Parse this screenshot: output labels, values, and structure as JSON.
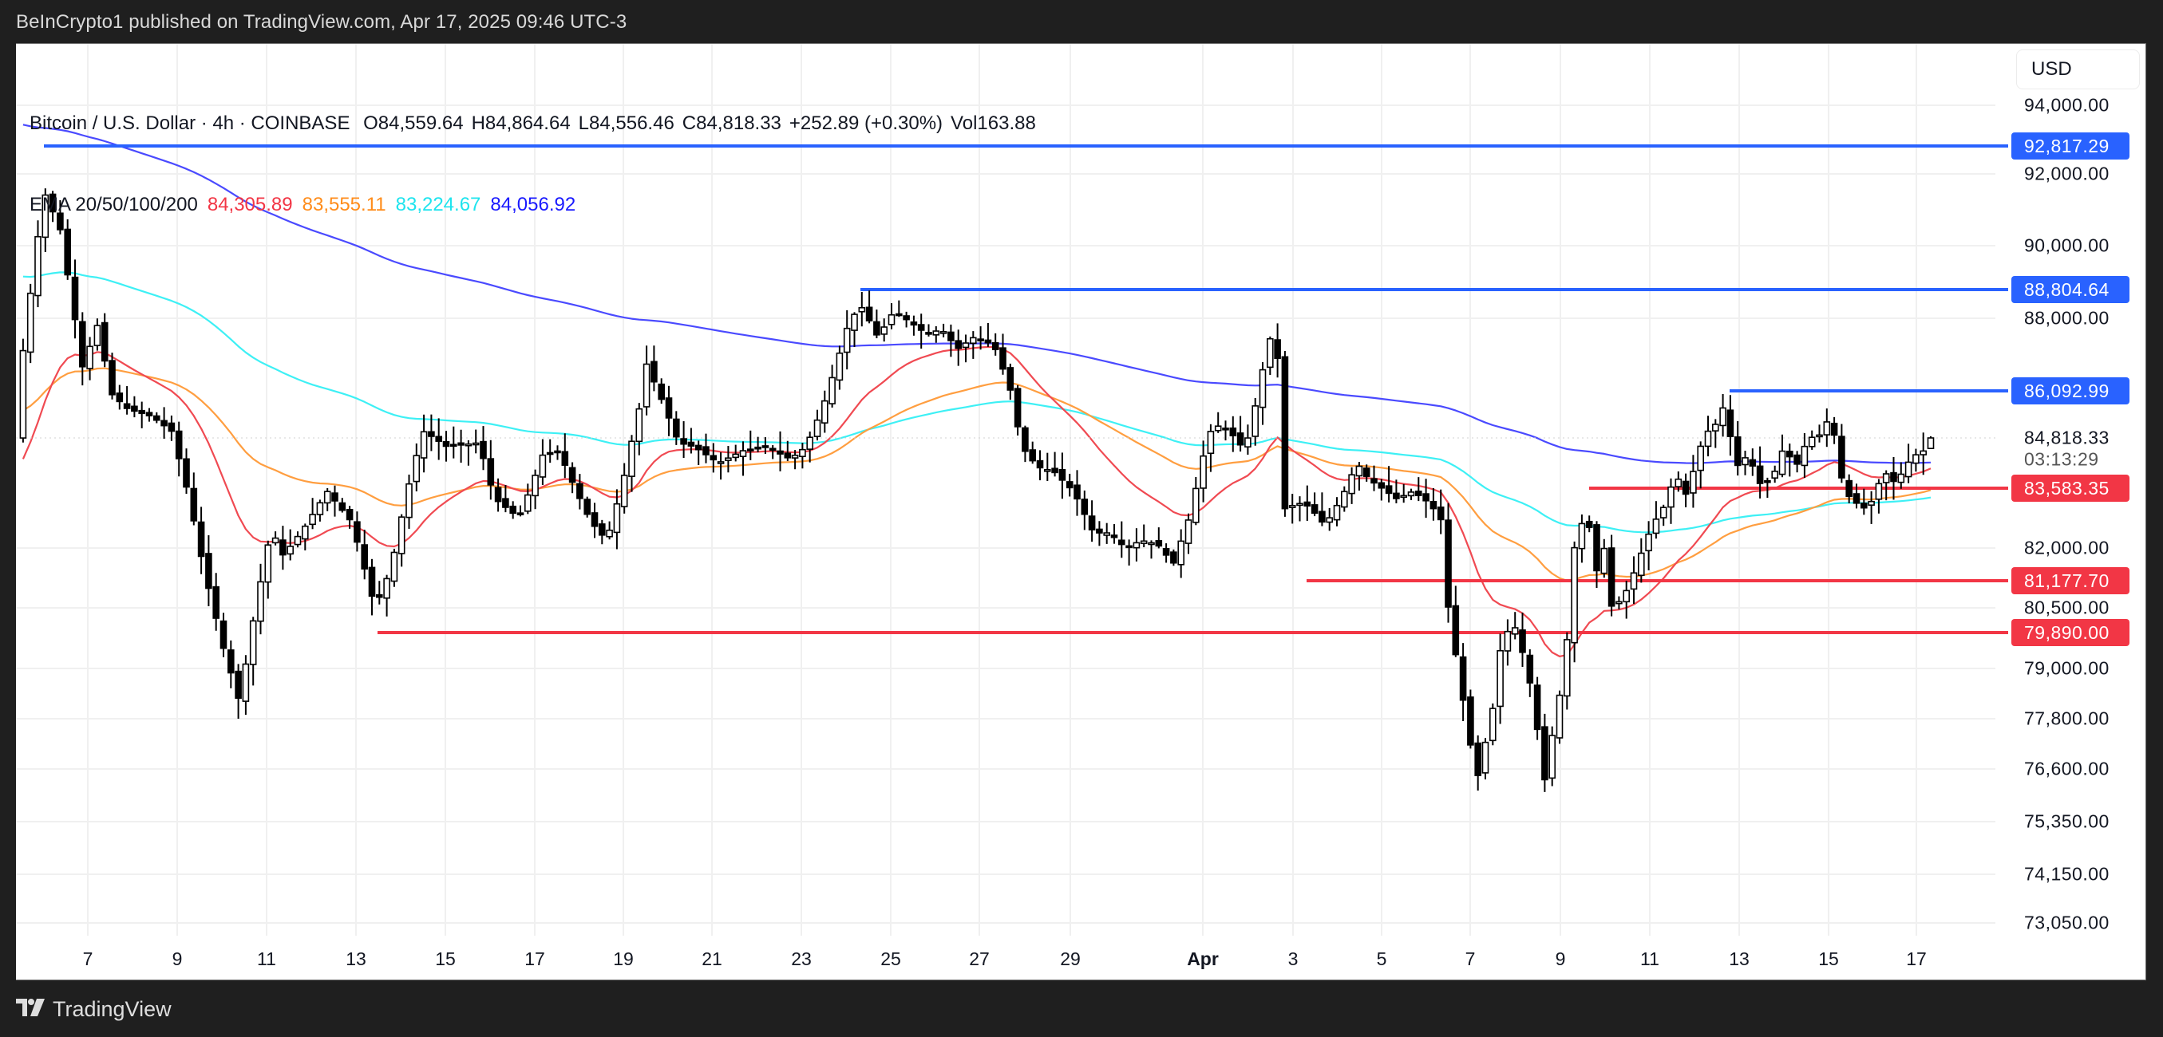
{
  "header": {
    "published_text": "BeInCrypto1 published on TradingView.com, Apr 17, 2025 09:46 UTC-3"
  },
  "legend": {
    "symbol": "Bitcoin / U.S. Dollar · 4h · COINBASE",
    "open": "O84,559.64",
    "high": "H84,864.64",
    "low": "L84,556.46",
    "close": "C84,818.33",
    "change": "+252.89 (+0.30%)",
    "volume": "Vol163.88",
    "ema_label": "EMA 20/50/100/200",
    "ema_values": [
      {
        "period": "20",
        "value": "84,305.89",
        "color": "#f23645"
      },
      {
        "period": "50",
        "value": "83,555.11",
        "color": "#ff8c1a"
      },
      {
        "period": "100",
        "value": "83,224.67",
        "color": "#1ee4ee"
      },
      {
        "period": "200",
        "value": "84,056.92",
        "color": "#1a1aff"
      }
    ]
  },
  "currency_button": "USD",
  "price_axis": {
    "ticks": [
      {
        "label": "94,000.00",
        "price": 94000
      },
      {
        "label": "92,000.00",
        "price": 92000
      },
      {
        "label": "90,000.00",
        "price": 90000
      },
      {
        "label": "88,000.00",
        "price": 88000
      },
      {
        "label": "82,000.00",
        "price": 82000
      },
      {
        "label": "80,500.00",
        "price": 80500
      },
      {
        "label": "79,000.00",
        "price": 79000
      },
      {
        "label": "77,800.00",
        "price": 77800
      },
      {
        "label": "76,600.00",
        "price": 76600
      },
      {
        "label": "75,350.00",
        "price": 75350
      },
      {
        "label": "74,150.00",
        "price": 74150
      },
      {
        "label": "73,050.00",
        "price": 73050
      }
    ],
    "current_price": "84,818.33",
    "countdown": "03:13:29"
  },
  "time_axis": {
    "ticks": [
      "7",
      "9",
      "11",
      "13",
      "15",
      "17",
      "19",
      "21",
      "23",
      "25",
      "27",
      "29",
      "Apr",
      "3",
      "5",
      "7",
      "9",
      "11",
      "13",
      "15",
      "17"
    ]
  },
  "levels": [
    {
      "label": "92,817.29",
      "price": 92817.29,
      "type": "resistance",
      "color": "#2962ff"
    },
    {
      "label": "88,804.64",
      "price": 88804.64,
      "type": "resistance",
      "color": "#2962ff"
    },
    {
      "label": "86,092.99",
      "price": 86092.99,
      "type": "resistance",
      "color": "#2962ff"
    },
    {
      "label": "83,583.35",
      "price": 83583.35,
      "type": "support",
      "color": "#f23645"
    },
    {
      "label": "81,177.70",
      "price": 81177.7,
      "type": "support",
      "color": "#f23645"
    },
    {
      "label": "79,890.00",
      "price": 79890.0,
      "type": "support",
      "color": "#f23645"
    }
  ],
  "footer": {
    "brand": "TradingView"
  },
  "chart_data": {
    "type": "candlestick",
    "title": "Bitcoin / U.S. Dollar · 4h · COINBASE",
    "xlabel": "",
    "ylabel": "USD",
    "x_ticks": [
      "Mar 7",
      "Mar 9",
      "Mar 11",
      "Mar 13",
      "Mar 15",
      "Mar 17",
      "Mar 19",
      "Mar 21",
      "Mar 23",
      "Mar 25",
      "Mar 27",
      "Mar 29",
      "Apr 1",
      "Apr 3",
      "Apr 5",
      "Apr 7",
      "Apr 9",
      "Apr 11",
      "Apr 13",
      "Apr 15",
      "Apr 17"
    ],
    "ylim": [
      72500,
      95000
    ],
    "grid": true,
    "last_candle": {
      "open": 84559.64,
      "high": 84864.64,
      "low": 84556.46,
      "close": 84818.33,
      "change": 252.89,
      "change_pct": 0.3,
      "volume": 163.88
    },
    "series": [
      {
        "name": "EMA 20",
        "color": "#f23645",
        "last": 84305.89
      },
      {
        "name": "EMA 50",
        "color": "#ff8c1a",
        "last": 83555.11
      },
      {
        "name": "EMA 100",
        "color": "#1ee4ee",
        "last": 83224.67
      },
      {
        "name": "EMA 200",
        "color": "#1a1aff",
        "last": 84056.92
      }
    ],
    "horizontal_levels": {
      "resistance": [
        92817.29,
        88804.64,
        86092.99
      ],
      "support": [
        83583.35,
        81177.7,
        79890.0
      ]
    },
    "approx_closes_by_day": [
      {
        "date": "Mar 6",
        "close": 89500
      },
      {
        "date": "Mar 7",
        "close": 86800
      },
      {
        "date": "Mar 9",
        "close": 82500
      },
      {
        "date": "Mar 10",
        "close": 78600
      },
      {
        "date": "Mar 11",
        "close": 81500
      },
      {
        "date": "Mar 13",
        "close": 80600
      },
      {
        "date": "Mar 15",
        "close": 84300
      },
      {
        "date": "Mar 17",
        "close": 83900
      },
      {
        "date": "Mar 19",
        "close": 86500
      },
      {
        "date": "Mar 21",
        "close": 84200
      },
      {
        "date": "Mar 23",
        "close": 85800
      },
      {
        "date": "Mar 25",
        "close": 87500
      },
      {
        "date": "Mar 27",
        "close": 87100
      },
      {
        "date": "Mar 29",
        "close": 82500
      },
      {
        "date": "Apr 1",
        "close": 84900
      },
      {
        "date": "Apr 3",
        "close": 82300
      },
      {
        "date": "Apr 5",
        "close": 83200
      },
      {
        "date": "Apr 7",
        "close": 76500
      },
      {
        "date": "Apr 9",
        "close": 82500
      },
      {
        "date": "Apr 11",
        "close": 83500
      },
      {
        "date": "Apr 13",
        "close": 84500
      },
      {
        "date": "Apr 15",
        "close": 84000
      },
      {
        "date": "Apr 17",
        "close": 84818.33
      }
    ]
  }
}
